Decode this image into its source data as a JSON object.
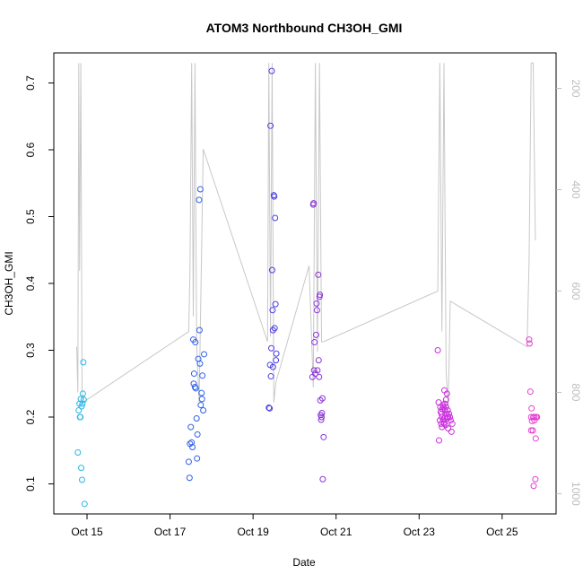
{
  "chart_data": {
    "type": "scatter",
    "title": "ATOM3 Northbound CH3OH_GMI",
    "xlabel": "Date",
    "ylabel": "CH3OH_GMI",
    "xlim_days": [
      14.2,
      26.3
    ],
    "ylim": [
      0.055,
      0.745
    ],
    "y2lim": [
      1040,
      130
    ],
    "x_ticks": [
      {
        "x": 15,
        "label": "Oct 15"
      },
      {
        "x": 17,
        "label": "Oct 17"
      },
      {
        "x": 19,
        "label": "Oct 19"
      },
      {
        "x": 21,
        "label": "Oct 21"
      },
      {
        "x": 23,
        "label": "Oct 23"
      },
      {
        "x": 25,
        "label": "Oct 25"
      }
    ],
    "y_ticks": [
      0.1,
      0.2,
      0.3,
      0.4,
      0.5,
      0.6,
      0.7
    ],
    "y2_ticks": [
      200,
      400,
      600,
      800,
      1000
    ],
    "grid": false,
    "pressure_line_color": "#c8c8c8",
    "pressure_profile": [
      [
        14.75,
        710
      ],
      [
        14.78,
        800
      ],
      [
        14.8,
        150
      ],
      [
        14.82,
        560
      ],
      [
        14.85,
        150
      ],
      [
        14.88,
        790
      ],
      [
        14.9,
        820
      ],
      [
        17.45,
        680
      ],
      [
        17.48,
        560
      ],
      [
        17.52,
        150
      ],
      [
        17.56,
        650
      ],
      [
        17.6,
        150
      ],
      [
        17.64,
        700
      ],
      [
        17.7,
        820
      ],
      [
        17.8,
        320
      ],
      [
        19.35,
        700
      ],
      [
        19.38,
        150
      ],
      [
        19.42,
        690
      ],
      [
        19.46,
        150
      ],
      [
        19.5,
        820
      ],
      [
        19.55,
        780
      ],
      [
        20.35,
        550
      ],
      [
        20.45,
        790
      ],
      [
        20.5,
        150
      ],
      [
        20.55,
        720
      ],
      [
        20.6,
        150
      ],
      [
        20.65,
        700
      ],
      [
        20.7,
        700
      ],
      [
        23.45,
        600
      ],
      [
        23.5,
        150
      ],
      [
        23.55,
        680
      ],
      [
        23.6,
        150
      ],
      [
        23.65,
        760
      ],
      [
        23.7,
        830
      ],
      [
        23.75,
        620
      ],
      [
        25.6,
        710
      ],
      [
        25.65,
        540
      ],
      [
        25.7,
        150
      ],
      [
        25.75,
        150
      ],
      [
        25.8,
        500
      ]
    ],
    "series": [
      {
        "color": "#29b6e6",
        "points": [
          [
            14.78,
            0.147
          ],
          [
            14.8,
            0.21
          ],
          [
            14.82,
            0.22
          ],
          [
            14.84,
            0.2
          ],
          [
            14.85,
            0.227
          ],
          [
            14.86,
            0.124
          ],
          [
            14.87,
            0.216
          ],
          [
            14.88,
            0.106
          ],
          [
            14.89,
            0.22
          ],
          [
            14.9,
            0.235
          ],
          [
            14.91,
            0.282
          ],
          [
            14.92,
            0.226
          ],
          [
            14.94,
            0.07
          ],
          [
            14.83,
            0.2
          ]
        ]
      },
      {
        "color": "#2f62e8",
        "points": [
          [
            17.45,
            0.133
          ],
          [
            17.47,
            0.109
          ],
          [
            17.48,
            0.16
          ],
          [
            17.5,
            0.185
          ],
          [
            17.52,
            0.162
          ],
          [
            17.54,
            0.155
          ],
          [
            17.56,
            0.316
          ],
          [
            17.57,
            0.25
          ],
          [
            17.58,
            0.265
          ],
          [
            17.6,
            0.245
          ],
          [
            17.61,
            0.312
          ],
          [
            17.62,
            0.243
          ],
          [
            17.64,
            0.198
          ],
          [
            17.65,
            0.138
          ],
          [
            17.66,
            0.174
          ],
          [
            17.68,
            0.287
          ],
          [
            17.7,
            0.525
          ],
          [
            17.71,
            0.33
          ],
          [
            17.72,
            0.28
          ],
          [
            17.73,
            0.541
          ],
          [
            17.74,
            0.218
          ],
          [
            17.76,
            0.236
          ],
          [
            17.77,
            0.227
          ],
          [
            17.78,
            0.262
          ],
          [
            17.8,
            0.21
          ],
          [
            17.82,
            0.294
          ]
        ]
      },
      {
        "color": "#4b3fe6",
        "points": [
          [
            19.38,
            0.214
          ],
          [
            19.4,
            0.213
          ],
          [
            19.41,
            0.278
          ],
          [
            19.42,
            0.636
          ],
          [
            19.43,
            0.261
          ],
          [
            19.44,
            0.303
          ],
          [
            19.45,
            0.718
          ],
          [
            19.46,
            0.42
          ],
          [
            19.47,
            0.36
          ],
          [
            19.48,
            0.275
          ],
          [
            19.5,
            0.532
          ],
          [
            19.51,
            0.53
          ],
          [
            19.52,
            0.333
          ],
          [
            19.53,
            0.498
          ],
          [
            19.54,
            0.369
          ],
          [
            19.55,
            0.285
          ],
          [
            19.56,
            0.295
          ],
          [
            19.48,
            0.33
          ]
        ]
      },
      {
        "color": "#8a34d8",
        "points": [
          [
            20.43,
            0.26
          ],
          [
            20.45,
            0.518
          ],
          [
            20.46,
            0.52
          ],
          [
            20.47,
            0.27
          ],
          [
            20.48,
            0.312
          ],
          [
            20.5,
            0.265
          ],
          [
            20.52,
            0.323
          ],
          [
            20.53,
            0.37
          ],
          [
            20.54,
            0.36
          ],
          [
            20.55,
            0.27
          ],
          [
            20.57,
            0.413
          ],
          [
            20.58,
            0.285
          ],
          [
            20.6,
            0.38
          ],
          [
            20.61,
            0.383
          ],
          [
            20.62,
            0.225
          ],
          [
            20.64,
            0.196
          ],
          [
            20.65,
            0.2
          ],
          [
            20.66,
            0.206
          ],
          [
            20.67,
            0.228
          ],
          [
            20.68,
            0.107
          ],
          [
            20.7,
            0.17
          ],
          [
            20.63,
            0.203
          ],
          [
            20.59,
            0.26
          ]
        ]
      },
      {
        "color": "#c92fdc",
        "points": [
          [
            23.45,
            0.3
          ],
          [
            23.47,
            0.222
          ],
          [
            23.48,
            0.165
          ],
          [
            23.5,
            0.195
          ],
          [
            23.51,
            0.215
          ],
          [
            23.52,
            0.208
          ],
          [
            23.53,
            0.19
          ],
          [
            23.54,
            0.205
          ],
          [
            23.55,
            0.2
          ],
          [
            23.56,
            0.212
          ],
          [
            23.57,
            0.218
          ],
          [
            23.58,
            0.196
          ],
          [
            23.59,
            0.215
          ],
          [
            23.6,
            0.192
          ],
          [
            23.61,
            0.24
          ],
          [
            23.62,
            0.21
          ],
          [
            23.63,
            0.2
          ],
          [
            23.64,
            0.188
          ],
          [
            23.65,
            0.215
          ],
          [
            23.66,
            0.205
          ],
          [
            23.67,
            0.235
          ],
          [
            23.68,
            0.198
          ],
          [
            23.69,
            0.21
          ],
          [
            23.7,
            0.183
          ],
          [
            23.72,
            0.205
          ],
          [
            23.74,
            0.2
          ],
          [
            23.76,
            0.195
          ],
          [
            23.78,
            0.178
          ],
          [
            23.8,
            0.19
          ],
          [
            23.55,
            0.185
          ],
          [
            23.6,
            0.19
          ],
          [
            23.65,
            0.226
          ],
          [
            23.62,
            0.22
          ],
          [
            23.7,
            0.2
          ]
        ]
      },
      {
        "color": "#e53fcf",
        "points": [
          [
            25.65,
            0.316
          ],
          [
            25.66,
            0.31
          ],
          [
            25.68,
            0.238
          ],
          [
            25.7,
            0.2
          ],
          [
            25.71,
            0.213
          ],
          [
            25.72,
            0.194
          ],
          [
            25.74,
            0.18
          ],
          [
            25.75,
            0.2
          ],
          [
            25.76,
            0.097
          ],
          [
            25.78,
            0.195
          ],
          [
            25.8,
            0.107
          ],
          [
            25.81,
            0.168
          ],
          [
            25.82,
            0.2
          ],
          [
            25.84,
            0.2
          ],
          [
            25.7,
            0.18
          ],
          [
            25.78,
            0.2
          ]
        ]
      }
    ]
  }
}
